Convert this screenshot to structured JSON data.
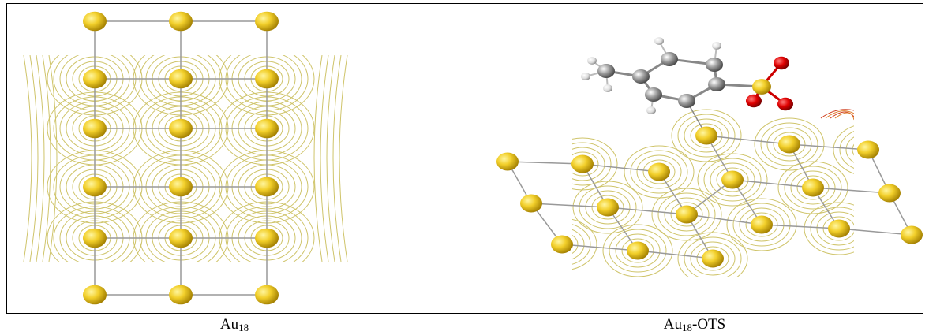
{
  "panels": [
    {
      "caption": {
        "base": "Au",
        "subscript": "18"
      }
    },
    {
      "caption": {
        "base": "Au",
        "subscript": "18",
        "suffix": "-OTS"
      }
    }
  ]
}
